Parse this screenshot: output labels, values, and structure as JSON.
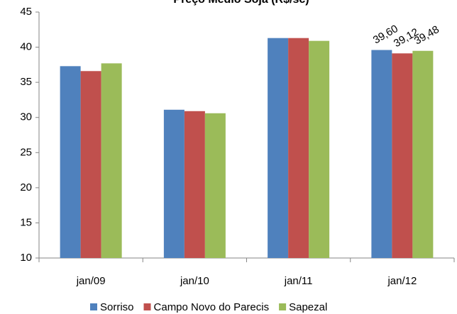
{
  "chart_data": {
    "type": "bar",
    "title": "Preço Médio Soja (R$/sc)",
    "categories": [
      "jan/09",
      "jan/10",
      "jan/11",
      "jan/12"
    ],
    "series": [
      {
        "name": "Sorriso",
        "color": "#4f81bd",
        "values": [
          37.3,
          31.1,
          41.3,
          39.6
        ],
        "value_labels": [
          null,
          null,
          null,
          "39,60"
        ]
      },
      {
        "name": "Campo Novo do Parecis",
        "color": "#c0504d",
        "values": [
          36.6,
          30.9,
          41.3,
          39.12
        ],
        "value_labels": [
          null,
          null,
          null,
          "39,12"
        ]
      },
      {
        "name": "Sapezal",
        "color": "#9bbb59",
        "values": [
          37.7,
          30.6,
          40.9,
          39.48
        ],
        "value_labels": [
          null,
          null,
          null,
          "39,48"
        ]
      }
    ],
    "ylim": [
      10,
      45
    ],
    "yticks": [
      10,
      15,
      20,
      25,
      30,
      35,
      40,
      45
    ],
    "grid": false,
    "legend": "bottom"
  }
}
